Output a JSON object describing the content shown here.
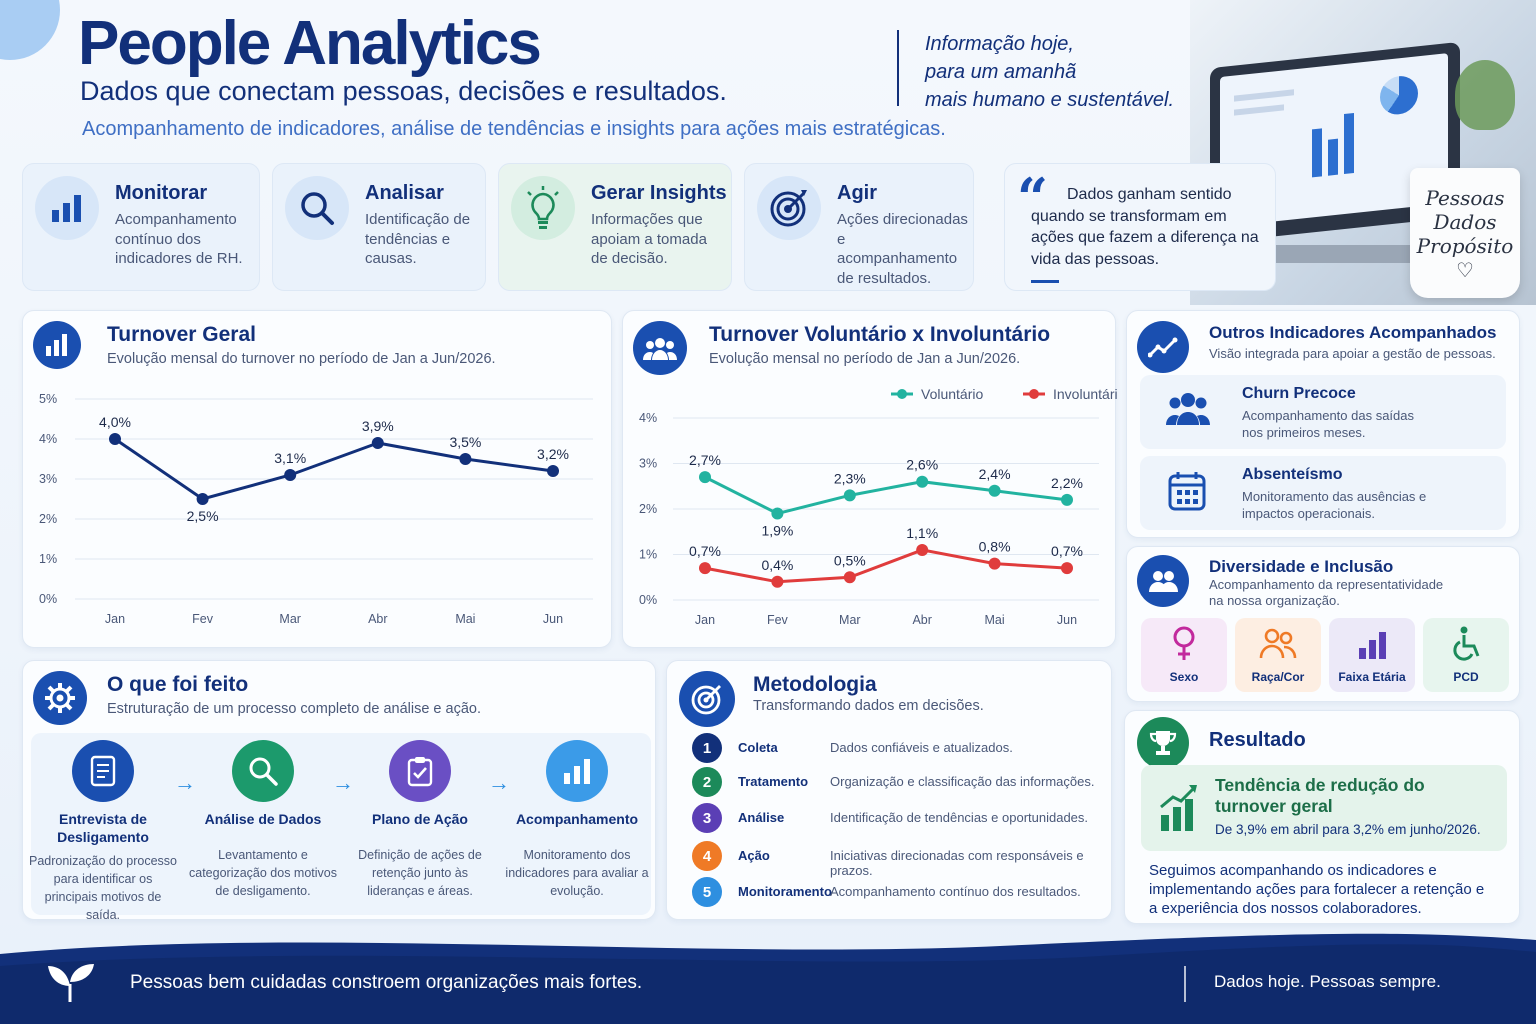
{
  "header": {
    "title": "People Analytics",
    "subtitle": "Dados que conectam pessoas, decisões e resultados.",
    "tagline": "Acompanhamento de indicadores, análise de tendências e insights para ações mais estratégicas.",
    "quote_lines": [
      "Informação hoje,",
      "para um amanhã",
      "mais humano e sustentável."
    ],
    "mug_lines": [
      "Pessoas",
      "Dados",
      "Propósito"
    ]
  },
  "steps": [
    {
      "title": "Monitorar",
      "desc": "Acompanhamento contínuo dos indicadores de RH.",
      "icon": "bar-chart-icon"
    },
    {
      "title": "Analisar",
      "desc": "Identificação de tendências e causas.",
      "icon": "search-icon"
    },
    {
      "title": "Gerar Insights",
      "desc": "Informações que apoiam a tomada de decisão.",
      "icon": "lightbulb-icon"
    },
    {
      "title": "Agir",
      "desc": "Ações direcionadas e acompanhamento de resultados.",
      "icon": "target-icon"
    }
  ],
  "quote_card": {
    "text": "Dados ganham sentido quando se transformam em ações que fazem a diferença na vida das pessoas."
  },
  "chart_data": [
    {
      "type": "line",
      "title": "Turnover Geral",
      "subtitle": "Evolução mensal do turnover no período de Jan a Jun/2026.",
      "categories": [
        "Jan",
        "Fev",
        "Mar",
        "Abr",
        "Mai",
        "Jun"
      ],
      "values": [
        4.0,
        2.5,
        3.1,
        3.9,
        3.5,
        3.2
      ],
      "data_labels": [
        "4,0%",
        "2,5%",
        "3,1%",
        "3,9%",
        "3,5%",
        "3,2%"
      ],
      "y_ticks": [
        "0%",
        "1%",
        "2%",
        "3%",
        "4%",
        "5%"
      ],
      "ylim": [
        0,
        5
      ],
      "grid": true,
      "color": "#12307a"
    },
    {
      "type": "line",
      "title": "Turnover Voluntário x Involuntário",
      "subtitle": "Evolução mensal no período de Jan a Jun/2026.",
      "categories": [
        "Jan",
        "Fev",
        "Mar",
        "Abr",
        "Mai",
        "Jun"
      ],
      "y_ticks": [
        "0%",
        "1%",
        "2%",
        "3%",
        "4%"
      ],
      "ylim": [
        0,
        4
      ],
      "grid": true,
      "legend": "top-right",
      "series": [
        {
          "name": "Voluntário",
          "values": [
            2.7,
            1.9,
            2.3,
            2.6,
            2.4,
            2.2
          ],
          "data_labels": [
            "2,7%",
            "1,9%",
            "2,3%",
            "2,6%",
            "2,4%",
            "2,2%"
          ],
          "color": "#22b3a0"
        },
        {
          "name": "Involuntário",
          "values": [
            0.7,
            0.4,
            0.5,
            1.1,
            0.8,
            0.7
          ],
          "data_labels": [
            "0,7%",
            "0,4%",
            "0,5%",
            "1,1%",
            "0,8%",
            "0,7%"
          ],
          "color": "#e03c3c"
        }
      ]
    }
  ],
  "outros": {
    "title": "Outros Indicadores Acompanhados",
    "subtitle": "Visão integrada para apoiar a gestão de pessoas.",
    "items": [
      {
        "title": "Churn Precoce",
        "desc": "Acompanhamento das saídas nos primeiros meses."
      },
      {
        "title": "Absenteísmo",
        "desc": "Monitoramento das ausências e impactos operacionais."
      }
    ]
  },
  "diversidade": {
    "title": "Diversidade e Inclusão",
    "subtitle": "Acompanhamento da representatividade na nossa organização.",
    "tiles": [
      {
        "label": "Sexo",
        "bg": "#f6e9f8",
        "color": "#c2299d"
      },
      {
        "label": "Raça/Cor",
        "bg": "#fdeee2",
        "color": "#ef7a26"
      },
      {
        "label": "Faixa Etária",
        "bg": "#ece9f8",
        "color": "#5b3fb5"
      },
      {
        "label": "PCD",
        "bg": "#e7f5ee",
        "color": "#1c8a5a"
      }
    ]
  },
  "feito": {
    "title": "O que foi feito",
    "subtitle": "Estruturação de um processo completo de análise e ação.",
    "items": [
      {
        "title": "Entrevista de Desligamento",
        "desc": "Padronização do processo para identificar os principais motivos de saída.",
        "color": "#1a4fb0"
      },
      {
        "title": "Análise de Dados",
        "desc": "Levantamento e categorização dos motivos de desligamento.",
        "color": "#1c9a6c"
      },
      {
        "title": "Plano de Ação",
        "desc": "Definição de ações de retenção junto às lideranças e áreas.",
        "color": "#6a4fc4"
      },
      {
        "title": "Acompanhamento",
        "desc": "Monitoramento dos indicadores para avaliar a evolução.",
        "color": "#2e8fe0"
      }
    ]
  },
  "metodologia": {
    "title": "Metodologia",
    "subtitle": "Transformando dados em decisões.",
    "items": [
      {
        "n": "1",
        "name": "Coleta",
        "desc": "Dados confiáveis e atualizados.",
        "color": "#12307a"
      },
      {
        "n": "2",
        "name": "Tratamento",
        "desc": "Organização e classificação das informações.",
        "color": "#1c8a5a"
      },
      {
        "n": "3",
        "name": "Análise",
        "desc": "Identificação de tendências e oportunidades.",
        "color": "#5b3fb5"
      },
      {
        "n": "4",
        "name": "Ação",
        "desc": "Iniciativas direcionadas com responsáveis e prazos.",
        "color": "#ef7a26"
      },
      {
        "n": "5",
        "name": "Monitoramento",
        "desc": "Acompanhamento contínuo dos resultados.",
        "color": "#2e8fe0"
      }
    ]
  },
  "resultado": {
    "title": "Resultado",
    "highlight_title": "Tendência de redução do turnover geral",
    "highlight_desc": "De 3,9% em abril para 3,2% em junho/2026.",
    "text": "Seguimos acompanhando os indicadores e implementando ações para fortalecer a retenção e a experiência dos nossos colaboradores."
  },
  "footer": {
    "left": "Pessoas bem cuidadas constroem organizações mais fortes.",
    "right": "Dados hoje. Pessoas sempre."
  }
}
